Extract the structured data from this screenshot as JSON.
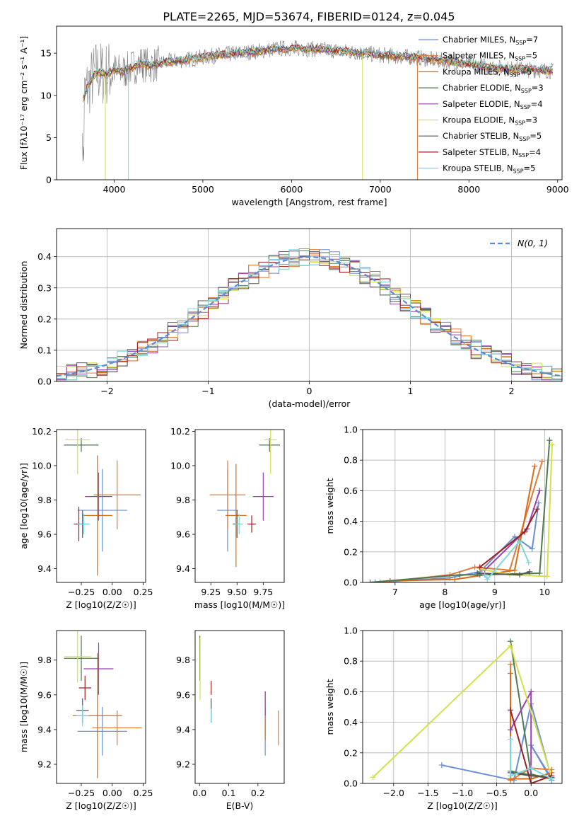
{
  "figure": {
    "title": "PLATE=2265, MJD=53674, FIBERID=0124, z=0.045"
  },
  "colors": [
    "#6a8fd6",
    "#e07b39",
    "#d96a16",
    "#4e7a4e",
    "#9b3fb5",
    "#d5e04a",
    "#555555",
    "#a11d1d",
    "#7fd7e0"
  ],
  "chart_data": [
    {
      "id": "spectrum",
      "type": "line",
      "xlabel": "wavelength [Angstrom, rest frame]",
      "ylabel": "Flux [fλ10⁻¹⁷ erg cm⁻² s⁻¹ A⁻¹]",
      "xlim": [
        3350,
        9050
      ],
      "ylim": [
        0,
        18.2
      ],
      "xticks": [
        4000,
        5000,
        6000,
        7000,
        8000,
        9000
      ],
      "yticks": [
        0,
        5,
        10,
        15
      ],
      "grid": false,
      "legend_position": "top-right",
      "x": [
        3650,
        3700,
        3800,
        3900,
        4000,
        4100,
        4200,
        4300,
        4400,
        4600,
        4800,
        5000,
        5200,
        5400,
        5600,
        5800,
        6000,
        6200,
        6400,
        6600,
        6800,
        7000,
        7200,
        7400,
        7600,
        7800,
        8000,
        8200,
        8400,
        8600,
        8800,
        8950
      ],
      "y": [
        9.5,
        11.0,
        12.8,
        12.5,
        13.0,
        12.8,
        13.3,
        13.8,
        13.5,
        14.0,
        14.2,
        14.5,
        14.8,
        15.0,
        15.2,
        15.5,
        15.6,
        15.5,
        15.4,
        15.2,
        15.0,
        14.8,
        14.6,
        14.5,
        14.2,
        14.0,
        13.7,
        13.4,
        13.2,
        13.1,
        13.0,
        12.9
      ],
      "series": [
        {
          "name": "Chabrier MILES, N_SSP=7"
        },
        {
          "name": "Salpeter MILES, N_SSP=5"
        },
        {
          "name": "Kroupa MILES, N_SSP=5"
        },
        {
          "name": "Chabrier ELODIE, N_SSP=3"
        },
        {
          "name": "Salpeter ELODIE, N_SSP=4"
        },
        {
          "name": "Kroupa ELODIE, N_SSP=3"
        },
        {
          "name": "Chabrier STELIB, N_SSP=5"
        },
        {
          "name": "Salpeter STELIB, N_SSP=4"
        },
        {
          "name": "Kroupa STELIB, N_SSP=5"
        }
      ]
    },
    {
      "id": "residuals",
      "type": "line",
      "xlabel": "(data-model)/error",
      "ylabel": "Normed distribution",
      "xlim": [
        -2.5,
        2.5
      ],
      "ylim": [
        0,
        0.49
      ],
      "xticks": [
        -2,
        -1,
        0,
        1,
        2
      ],
      "yticks": [
        0.0,
        0.1,
        0.2,
        0.3,
        0.4
      ],
      "grid": true,
      "legend": "N(0, 1)",
      "legend_position": "top-right"
    },
    {
      "id": "age_vs_Z",
      "type": "scatter",
      "xlabel": "Z [log10(Z/Z☉)]",
      "ylabel": "age [log10(age/yr)]",
      "xlim": [
        -0.45,
        0.27
      ],
      "ylim": [
        9.32,
        10.21
      ],
      "xticks": [
        -0.25,
        0.0,
        0.25
      ],
      "yticks": [
        9.4,
        9.6,
        9.8,
        10.0,
        10.2
      ],
      "points": [
        {
          "x": -0.08,
          "y": 9.74,
          "xerr": 0.2,
          "yerr": 0.24
        },
        {
          "x": 0.04,
          "y": 9.83,
          "xerr": 0.19,
          "yerr": 0.2
        },
        {
          "x": -0.12,
          "y": 9.71,
          "xerr": 0.12,
          "yerr": 0.35
        },
        {
          "x": -0.25,
          "y": 10.12,
          "xerr": 0.14,
          "yerr": 0.04
        },
        {
          "x": -0.11,
          "y": 9.82,
          "xerr": 0.11,
          "yerr": 0.14
        },
        {
          "x": -0.28,
          "y": 10.15,
          "xerr": 0.1,
          "yerr": 0.2
        },
        {
          "x": -0.24,
          "y": 9.66,
          "xerr": 0.05,
          "yerr": 0.08
        },
        {
          "x": -0.27,
          "y": 9.66,
          "xerr": 0.04,
          "yerr": 0.1
        },
        {
          "x": -0.23,
          "y": 9.66,
          "xerr": 0.05,
          "yerr": 0.06
        }
      ]
    },
    {
      "id": "age_vs_mass",
      "type": "scatter",
      "xlabel": "mass [log10(M/M☉)]",
      "ylabel": "",
      "xlim": [
        9.1,
        9.95
      ],
      "ylim": [
        9.32,
        10.21
      ],
      "xticks": [
        9.25,
        9.5,
        9.75
      ],
      "yticks": [
        9.4,
        9.6,
        9.8,
        10.0,
        10.2
      ],
      "points": [
        {
          "x": 9.41,
          "y": 9.74,
          "xerr": 0.1,
          "yerr": 0.24
        },
        {
          "x": 9.41,
          "y": 9.83,
          "xerr": 0.17,
          "yerr": 0.2
        },
        {
          "x": 9.49,
          "y": 9.71,
          "xerr": 0.1,
          "yerr": 0.3
        },
        {
          "x": 9.81,
          "y": 10.12,
          "xerr": 0.1,
          "yerr": 0.04
        },
        {
          "x": 9.75,
          "y": 9.82,
          "xerr": 0.1,
          "yerr": 0.14
        },
        {
          "x": 9.82,
          "y": 10.15,
          "xerr": 0.06,
          "yerr": 0.2
        },
        {
          "x": 9.5,
          "y": 9.66,
          "xerr": 0.04,
          "yerr": 0.08
        },
        {
          "x": 9.64,
          "y": 9.66,
          "xerr": 0.04,
          "yerr": 0.05
        },
        {
          "x": 9.52,
          "y": 9.66,
          "xerr": 0.04,
          "yerr": 0.06
        }
      ]
    },
    {
      "id": "mass_weight_vs_age",
      "type": "line",
      "xlabel": "age [log10(age/yr)]",
      "ylabel": "mass weight",
      "xlim": [
        6.35,
        10.35
      ],
      "ylim": [
        0,
        1.0
      ],
      "xticks": [
        7,
        8,
        9,
        10
      ],
      "yticks": [
        0.0,
        0.2,
        0.4,
        0.6,
        0.8,
        1.0
      ],
      "grid": true,
      "series": [
        {
          "x": [
            6.6,
            8.1,
            8.7,
            9.4,
            9.75,
            9.88
          ],
          "y": [
            0.0,
            0.03,
            0.07,
            0.3,
            0.22,
            0.52
          ]
        },
        {
          "x": [
            6.7,
            8.1,
            8.6,
            9.3,
            9.95
          ],
          "y": [
            0.0,
            0.05,
            0.1,
            0.08,
            0.79
          ]
        },
        {
          "x": [
            6.9,
            8.2,
            8.8,
            9.4,
            9.8
          ],
          "y": [
            0.01,
            0.02,
            0.05,
            0.08,
            0.76
          ]
        },
        {
          "x": [
            6.5,
            8.3,
            8.7,
            9.9,
            10.1
          ],
          "y": [
            0.0,
            0.05,
            0.05,
            0.06,
            0.93
          ]
        },
        {
          "x": [
            8.8,
            9.65,
            9.9
          ],
          "y": [
            0.08,
            0.35,
            0.6
          ]
        },
        {
          "x": [
            8.7,
            9.3,
            10.05,
            10.15
          ],
          "y": [
            0.09,
            0.05,
            0.04,
            0.9
          ]
        },
        {
          "x": [
            8.65,
            9.5,
            9.7
          ],
          "y": [
            0.06,
            0.05,
            0.07
          ]
        },
        {
          "x": [
            8.7,
            9.6,
            9.85
          ],
          "y": [
            0.1,
            0.33,
            0.48
          ]
        },
        {
          "x": [
            8.8,
            8.85,
            9.5,
            9.68
          ],
          "y": [
            0.05,
            0.02,
            0.27,
            0.13
          ]
        }
      ]
    },
    {
      "id": "mass_vs_Z",
      "type": "scatter",
      "xlabel": "Z [log10(Z/Z☉)]",
      "ylabel": "mass [log10(M/M☉)]",
      "xlim": [
        -0.45,
        0.27
      ],
      "ylim": [
        9.09,
        9.97
      ],
      "xticks": [
        -0.25,
        0.0,
        0.25
      ],
      "yticks": [
        9.2,
        9.4,
        9.6,
        9.8
      ],
      "points": [
        {
          "x": -0.08,
          "y": 9.39,
          "xerr": 0.2,
          "yerr": 0.14
        },
        {
          "x": 0.04,
          "y": 9.41,
          "xerr": 0.2,
          "yerr": 0.1
        },
        {
          "x": -0.12,
          "y": 9.48,
          "xerr": 0.2,
          "yerr": 0.36
        },
        {
          "x": -0.25,
          "y": 9.81,
          "xerr": 0.14,
          "yerr": 0.13
        },
        {
          "x": -0.11,
          "y": 9.75,
          "xerr": 0.12,
          "yerr": 0.15
        },
        {
          "x": -0.28,
          "y": 9.82,
          "xerr": 0.11,
          "yerr": 0.15
        },
        {
          "x": -0.24,
          "y": 9.51,
          "xerr": 0.05,
          "yerr": 0.07
        },
        {
          "x": -0.22,
          "y": 9.64,
          "xerr": 0.05,
          "yerr": 0.07
        },
        {
          "x": -0.24,
          "y": 9.48,
          "xerr": 0.05,
          "yerr": 0.06
        }
      ]
    },
    {
      "id": "mass_vs_EBV",
      "type": "scatter",
      "xlabel": "E(B-V)",
      "ylabel": "",
      "xlim": [
        -0.015,
        0.29
      ],
      "ylim": [
        9.09,
        9.97
      ],
      "xticks": [
        0.0,
        0.1,
        0.2
      ],
      "yticks": [
        9.2,
        9.4,
        9.6,
        9.8
      ],
      "points": [
        {
          "x": 0.225,
          "y": 9.39,
          "yerr": 0.14
        },
        {
          "x": 0.27,
          "y": 9.41,
          "yerr": 0.1
        },
        {
          "x": 0.225,
          "y": 9.48,
          "yerr": 0.14
        },
        {
          "x": 0.001,
          "y": 9.81,
          "yerr": 0.13
        },
        {
          "x": 0.225,
          "y": 9.55,
          "yerr": 0.07
        },
        {
          "x": 0.002,
          "y": 9.75,
          "yerr": 0.18
        },
        {
          "x": 0.04,
          "y": 9.51,
          "yerr": 0.07
        },
        {
          "x": 0.04,
          "y": 9.64,
          "yerr": 0.04
        },
        {
          "x": 0.04,
          "y": 9.48,
          "yerr": 0.04
        }
      ]
    },
    {
      "id": "mass_weight_vs_Z",
      "type": "line",
      "xlabel": "Z [log10(Z/Z☉)]",
      "ylabel": "mass weight",
      "xlim": [
        -2.45,
        0.45
      ],
      "ylim": [
        0,
        1.0
      ],
      "xticks": [
        -2.0,
        -1.5,
        -1.0,
        -0.5,
        0.0
      ],
      "yticks": [
        0.0,
        0.2,
        0.4,
        0.6,
        0.8,
        1.0
      ],
      "grid": true,
      "series": [
        {
          "x": [
            -1.3,
            -0.25,
            0.0,
            0.3,
            0.0,
            0.3
          ],
          "y": [
            0.12,
            0.02,
            0.52,
            0.03,
            0.25,
            0.02
          ]
        },
        {
          "x": [
            -0.3,
            -0.3,
            0.0,
            0.3
          ],
          "y": [
            0.78,
            0.02,
            0.1,
            0.09
          ]
        },
        {
          "x": [
            -0.3,
            -0.3,
            0.0,
            0.3
          ],
          "y": [
            0.72,
            0.03,
            0.03,
            0.07
          ]
        },
        {
          "x": [
            -0.3,
            0.0,
            0.3,
            -0.3
          ],
          "y": [
            0.93,
            0.06,
            0.03,
            0.08
          ]
        },
        {
          "x": [
            -0.3,
            0.0,
            0.0
          ],
          "y": [
            0.35,
            0.6,
            0.05
          ]
        },
        {
          "x": [
            -2.3,
            -0.3,
            0.3
          ],
          "y": [
            0.04,
            0.9,
            0.04
          ]
        },
        {
          "x": [
            -0.3,
            0.0,
            0.3
          ],
          "y": [
            0.07,
            0.05,
            0.04
          ]
        },
        {
          "x": [
            -0.3,
            0.0,
            0.3
          ],
          "y": [
            0.48,
            0.0,
            0.05
          ]
        },
        {
          "x": [
            -0.3,
            -0.3,
            0.0,
            0.3
          ],
          "y": [
            0.29,
            0.05,
            0.1,
            0.03
          ]
        }
      ]
    }
  ]
}
